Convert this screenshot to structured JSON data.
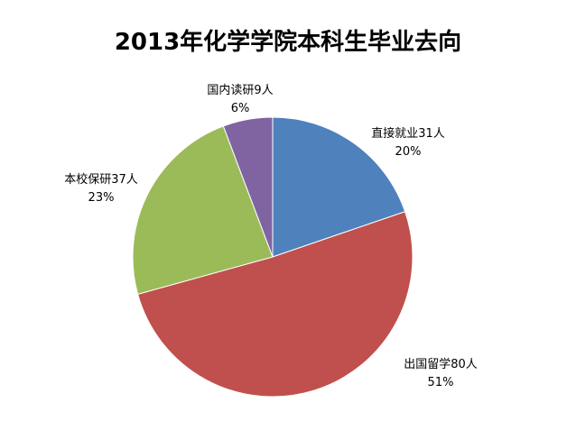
{
  "chart_data": {
    "type": "pie",
    "title": "2013年化学学院本科生毕业去向",
    "slices": [
      {
        "label": "直接就业31人",
        "value": 31,
        "percent": "20%",
        "color": "#4f81bd"
      },
      {
        "label": "出国留学80人",
        "value": 80,
        "percent": "51%",
        "color": "#c0504d"
      },
      {
        "label": "本校保研37人",
        "value": 37,
        "percent": "23%",
        "color": "#9bbb59"
      },
      {
        "label": "国内读研9人",
        "value": 9,
        "percent": "6%",
        "color": "#8064a2"
      }
    ],
    "legend": "none",
    "start_angle": "12 o'clock",
    "direction": "clockwise"
  }
}
